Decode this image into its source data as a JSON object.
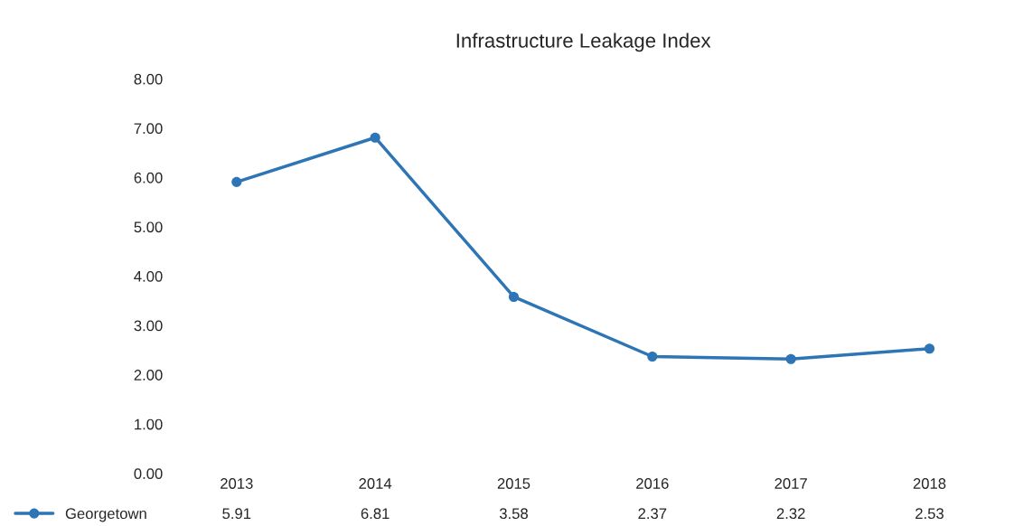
{
  "chart_data": {
    "type": "line",
    "title": "Infrastructure Leakage Index",
    "categories": [
      "2013",
      "2014",
      "2015",
      "2016",
      "2017",
      "2018"
    ],
    "series": [
      {
        "name": "Georgetown",
        "color": "#2e75b6",
        "values": [
          5.91,
          6.81,
          3.58,
          2.37,
          2.32,
          2.53
        ]
      }
    ],
    "ylim": [
      0,
      8
    ],
    "yticks": [
      {
        "value": 0,
        "label": "0.00"
      },
      {
        "value": 1,
        "label": "1.00"
      },
      {
        "value": 2,
        "label": "2.00"
      },
      {
        "value": 3,
        "label": "3.00"
      },
      {
        "value": 4,
        "label": "4.00"
      },
      {
        "value": 5,
        "label": "5.00"
      },
      {
        "value": 6,
        "label": "6.00"
      },
      {
        "value": 7,
        "label": "7.00"
      },
      {
        "value": 8,
        "label": "8.00"
      }
    ],
    "data_labels": true,
    "legend": "bottom left",
    "marker": "circle",
    "line_style": "solid",
    "grid": false
  }
}
